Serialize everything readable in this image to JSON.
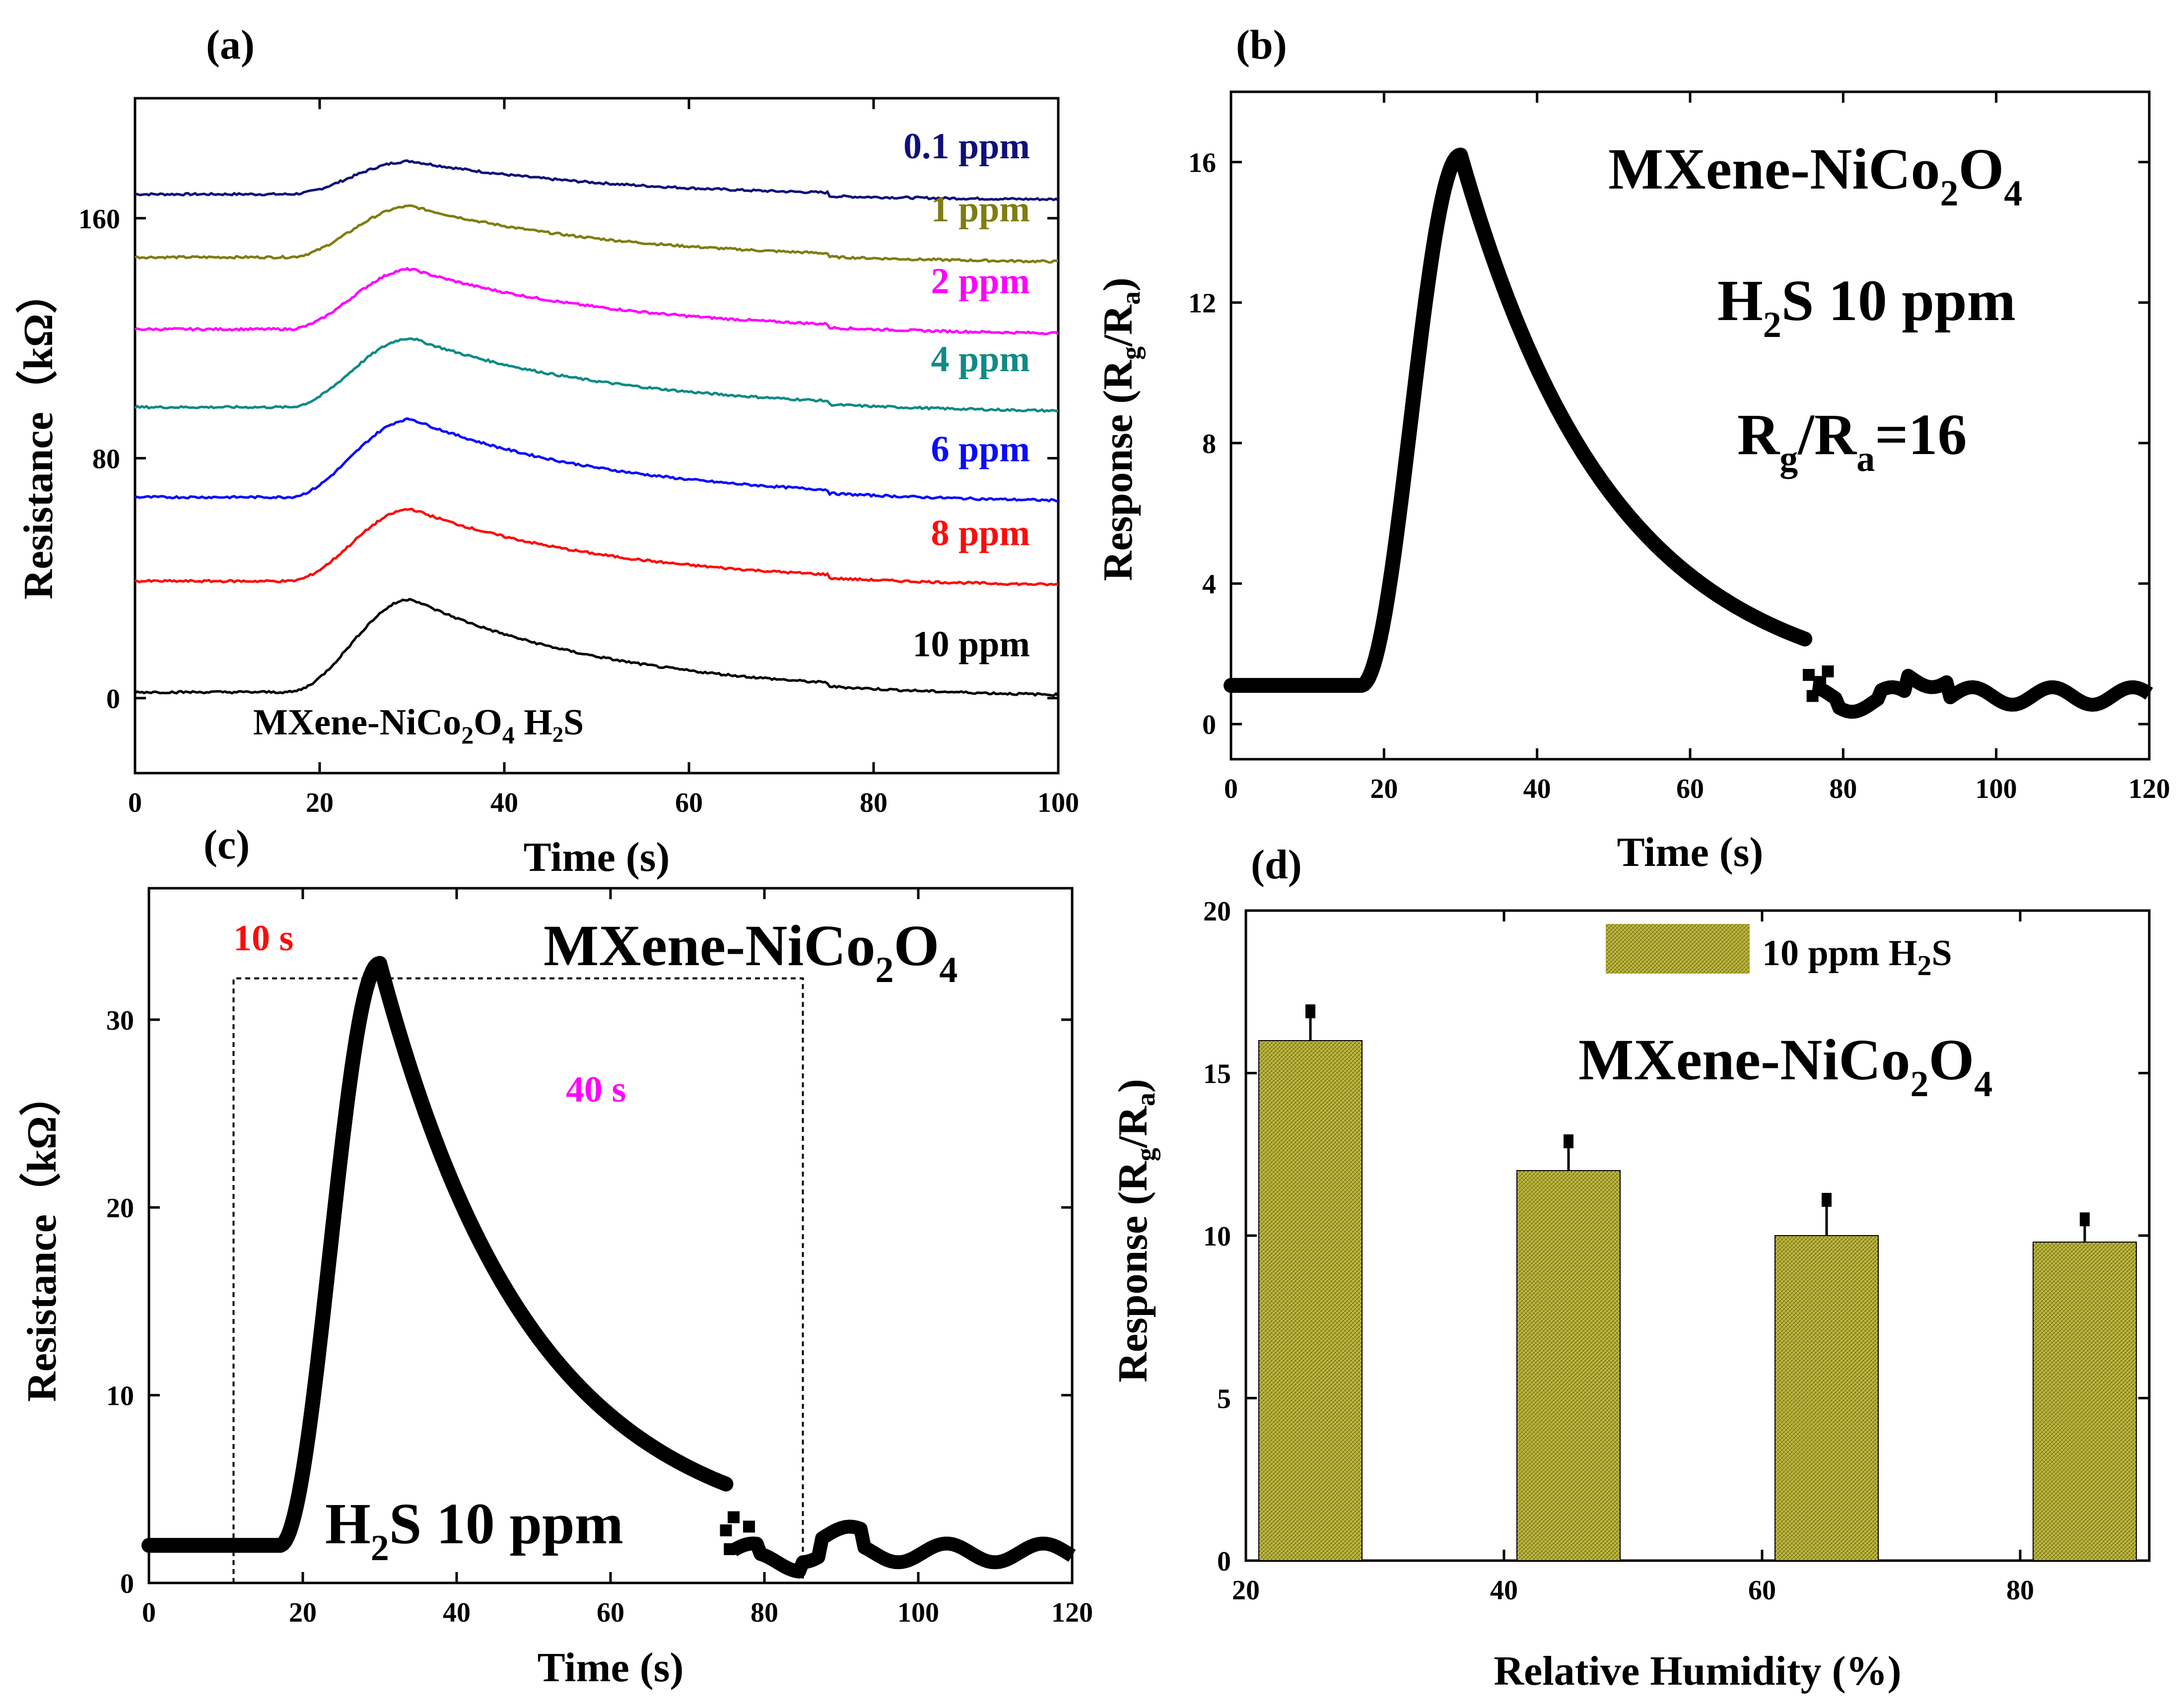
{
  "colors": {
    "navy": "#10107a",
    "olive": "#7f7d12",
    "magenta": "#ff00ff",
    "teal": "#108a86",
    "blue": "#0a0aff",
    "red": "#ff0a0a",
    "black": "#000000",
    "bar": "#a8a22a"
  },
  "chart_data": [
    {
      "panel": "(a)",
      "type": "line",
      "xlabel": "Time (s)",
      "ylabel": "Resistance（kΩ）",
      "xlim": [
        0,
        100
      ],
      "ylim": [
        -25,
        200
      ],
      "xticks": [
        "0",
        "20",
        "40",
        "60",
        "80",
        "100"
      ],
      "yticks": [
        "0",
        "80",
        "160"
      ],
      "annotation_main": "MXene-NiCo",
      "annotation_sub1": "2",
      "annotation_mid": "O",
      "annotation_sub2": "4",
      "annotation_end": " H₂S",
      "series": [
        {
          "name": "0.1 ppm",
          "color": "navy",
          "baseline": 168,
          "peak": 11
        },
        {
          "name": "1 ppm",
          "color": "olive",
          "baseline": 147,
          "peak": 17
        },
        {
          "name": "2 ppm",
          "color": "magenta",
          "baseline": 123,
          "peak": 20
        },
        {
          "name": "4 ppm",
          "color": "teal",
          "baseline": 97,
          "peak": 23
        },
        {
          "name": "6 ppm",
          "color": "blue",
          "baseline": 67,
          "peak": 26
        },
        {
          "name": "8 ppm",
          "color": "red",
          "baseline": 39,
          "peak": 24
        },
        {
          "name": "10 ppm",
          "color": "black",
          "baseline": 2,
          "peak": 31
        }
      ]
    },
    {
      "panel": "(b)",
      "type": "scatter",
      "xlabel": "Time (s)",
      "ylabel": "Response (Rg/Ra)",
      "xlim": [
        0,
        120
      ],
      "ylim": [
        -1,
        18
      ],
      "xticks": [
        "0",
        "20",
        "40",
        "60",
        "80",
        "100",
        "120"
      ],
      "yticks": [
        "0",
        "4",
        "8",
        "12",
        "16"
      ],
      "title_main": "MXene-NiCo",
      "title_sub1": "2",
      "title_mid": "O",
      "title_sub2": "4",
      "gas_pre": "H",
      "gas_sub": "2",
      "gas_post": "S 10 ppm",
      "ratio_r1": "R",
      "ratio_g": "g",
      "ratio_slash": "/R",
      "ratio_a": "a",
      "ratio_val": "=16",
      "baseline": 1.1,
      "onset_s": 17,
      "peak_time_s": 30,
      "peak_value": 16.2,
      "recovery_end_value": 2.2,
      "tail_value": 0.8
    },
    {
      "panel": "(c)",
      "type": "scatter",
      "xlabel": "Time (s)",
      "ylabel": "Resistance（kΩ）",
      "xlim": [
        0,
        120
      ],
      "ylim": [
        0,
        37
      ],
      "xticks": [
        "0",
        "20",
        "40",
        "60",
        "80",
        "100",
        "120"
      ],
      "yticks": [
        "0",
        "10",
        "20",
        "30"
      ],
      "title_main": "MXene-NiCo",
      "title_sub1": "2",
      "title_mid": "O",
      "title_sub2": "4",
      "gas_pre": "H",
      "gas_sub": "2",
      "gas_post": "S 10 ppm",
      "response_time_label": "10 s",
      "recovery_time_label": "40 s",
      "response_box_x": [
        11,
        30
      ],
      "recovery_box_x": [
        30,
        85
      ],
      "baseline": 2,
      "peak_time_s": 30,
      "peak_value": 33
    },
    {
      "panel": "(d)",
      "type": "bar",
      "xlabel": "Relative Humidity (%)",
      "ylabel": "Response (Rg/Ra)",
      "xlim": [
        20,
        90
      ],
      "ylim": [
        0,
        20
      ],
      "xticks": [
        "20",
        "40",
        "60",
        "80"
      ],
      "yticks": [
        "0",
        "5",
        "10",
        "15",
        "20"
      ],
      "legend_main": "10 ppm H",
      "legend_sub": "2",
      "legend_end": "S",
      "title_main": "MXene-NiCo",
      "title_sub1": "2",
      "title_mid": "O",
      "title_sub2": "4",
      "categories": [
        25,
        45,
        65,
        85
      ],
      "values": [
        16.0,
        12.0,
        10.0,
        9.8
      ],
      "errors": [
        0.9,
        0.9,
        1.1,
        0.7
      ]
    }
  ]
}
